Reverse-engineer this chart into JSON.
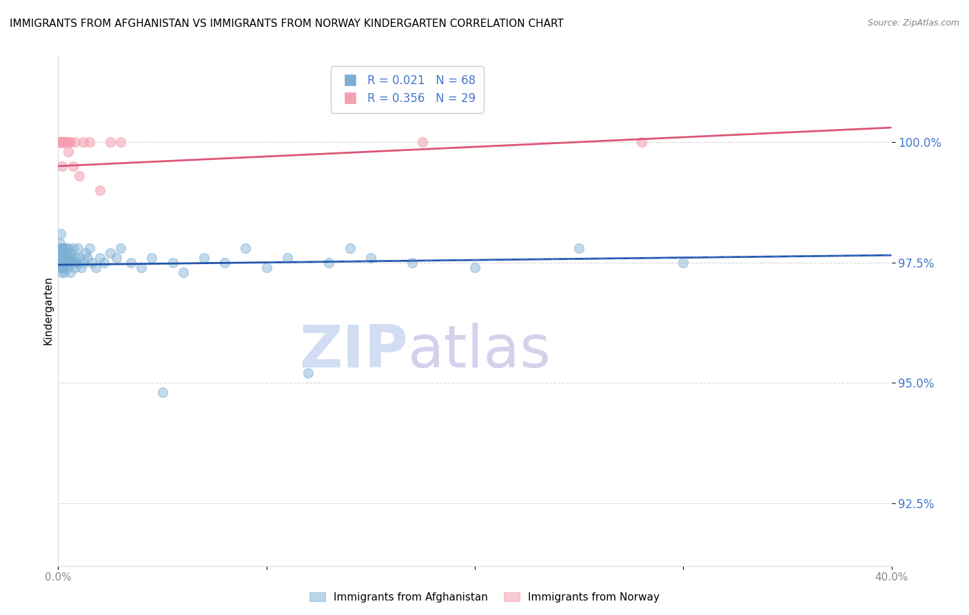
{
  "title": "IMMIGRANTS FROM AFGHANISTAN VS IMMIGRANTS FROM NORWAY KINDERGARTEN CORRELATION CHART",
  "source": "Source: ZipAtlas.com",
  "ylabel": "Kindergarten",
  "y_ticks": [
    92.5,
    95.0,
    97.5,
    100.0
  ],
  "y_tick_labels": [
    "92.5%",
    "95.0%",
    "97.5%",
    "100.0%"
  ],
  "xlim": [
    0.0,
    40.0
  ],
  "ylim": [
    91.2,
    101.8
  ],
  "afghanistan_color": "#7BAFD4",
  "norway_color": "#F4A0B0",
  "afghanistan_R": 0.021,
  "afghanistan_N": 68,
  "norway_R": 0.356,
  "norway_N": 29,
  "afghanistan_x": [
    0.05,
    0.08,
    0.1,
    0.1,
    0.12,
    0.12,
    0.14,
    0.15,
    0.15,
    0.16,
    0.18,
    0.2,
    0.2,
    0.22,
    0.25,
    0.25,
    0.28,
    0.3,
    0.3,
    0.35,
    0.38,
    0.4,
    0.42,
    0.45,
    0.48,
    0.5,
    0.55,
    0.58,
    0.6,
    0.65,
    0.7,
    0.75,
    0.8,
    0.85,
    0.9,
    0.95,
    1.0,
    1.1,
    1.2,
    1.3,
    1.4,
    1.5,
    1.6,
    1.8,
    2.0,
    2.2,
    2.5,
    2.8,
    3.0,
    3.5,
    4.0,
    4.5,
    5.0,
    5.5,
    6.0,
    7.0,
    8.0,
    9.0,
    10.0,
    11.0,
    12.0,
    13.0,
    14.0,
    15.0,
    17.0,
    20.0,
    25.0,
    30.0
  ],
  "afghanistan_y": [
    97.5,
    97.8,
    97.4,
    97.9,
    97.6,
    98.1,
    97.5,
    97.8,
    97.3,
    97.6,
    97.4,
    97.7,
    97.5,
    97.8,
    97.6,
    97.4,
    97.5,
    97.8,
    97.3,
    97.6,
    97.8,
    97.5,
    97.7,
    97.4,
    97.6,
    97.8,
    97.5,
    97.3,
    97.7,
    97.6,
    97.8,
    97.5,
    97.4,
    97.6,
    97.5,
    97.8,
    97.6,
    97.4,
    97.5,
    97.7,
    97.6,
    97.8,
    97.5,
    97.4,
    97.6,
    97.5,
    97.7,
    97.6,
    97.8,
    97.5,
    97.4,
    97.6,
    94.8,
    97.5,
    97.3,
    97.6,
    97.5,
    97.8,
    97.4,
    97.6,
    95.2,
    97.5,
    97.8,
    97.6,
    97.5,
    97.4,
    97.8,
    97.5
  ],
  "norway_x": [
    0.05,
    0.08,
    0.1,
    0.12,
    0.14,
    0.15,
    0.18,
    0.2,
    0.22,
    0.25,
    0.28,
    0.3,
    0.35,
    0.4,
    0.45,
    0.5,
    0.55,
    0.6,
    0.7,
    0.8,
    1.0,
    1.2,
    1.5,
    2.0,
    2.5,
    3.0,
    17.5,
    28.0,
    0.16
  ],
  "norway_y": [
    100.0,
    100.0,
    100.0,
    100.0,
    100.0,
    100.0,
    100.0,
    99.5,
    100.0,
    100.0,
    100.0,
    100.0,
    100.0,
    100.0,
    100.0,
    99.8,
    100.0,
    100.0,
    99.5,
    100.0,
    99.3,
    100.0,
    100.0,
    99.0,
    100.0,
    100.0,
    100.0,
    100.0,
    100.0
  ],
  "afg_reg_x0": 0.0,
  "afg_reg_y0": 97.45,
  "afg_reg_x1": 40.0,
  "afg_reg_y1": 97.65,
  "nor_reg_x0": 0.0,
  "nor_reg_y0": 99.5,
  "nor_reg_x1": 40.0,
  "nor_reg_y1": 100.3,
  "dashed_x0": 10.0,
  "dashed_x1": 40.0,
  "watermark_zip": "ZIP",
  "watermark_atlas": "atlas",
  "background_color": "#ffffff",
  "grid_color": "#cccccc",
  "axis_color": "#4477CC",
  "title_fontsize": 11,
  "label_fontsize": 10
}
